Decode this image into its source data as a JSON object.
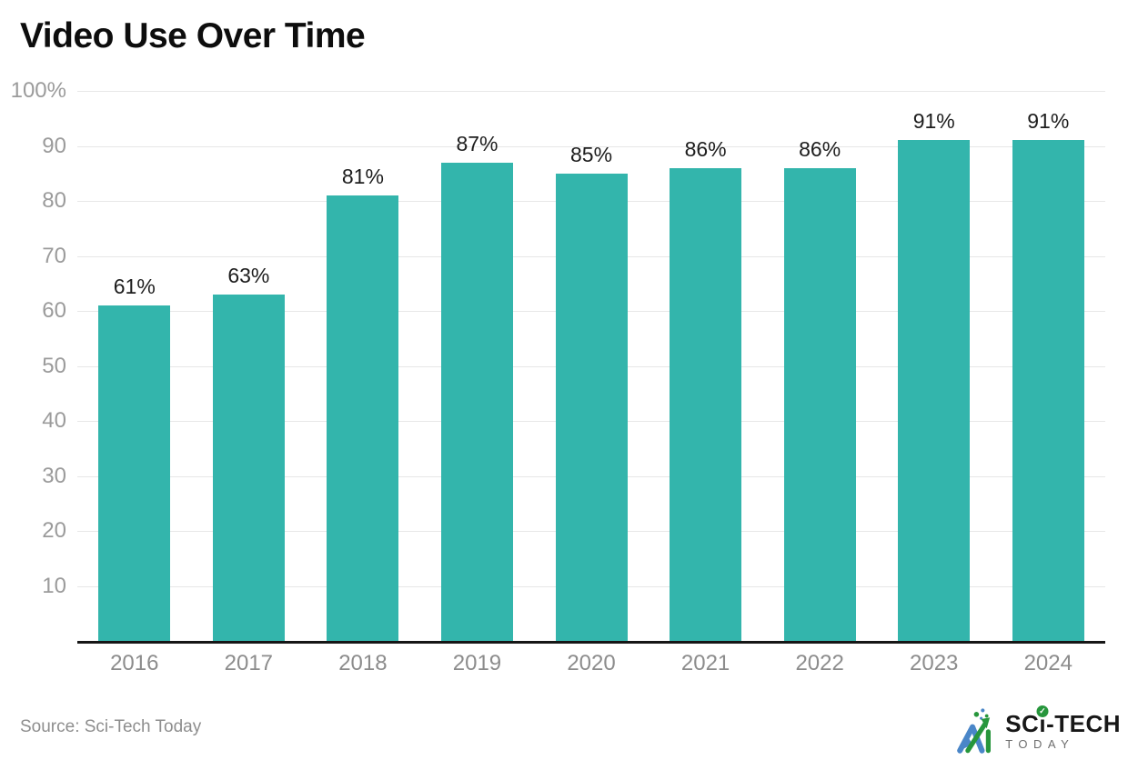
{
  "page": {
    "title": "Video Use Over Time",
    "source": "Source: Sci-Tech Today"
  },
  "logo": {
    "brand_prefix": "SC",
    "brand_i": "ı",
    "check": "✓",
    "brand_suffix": "-TECH",
    "brand_sub": "TODAY"
  },
  "colors": {
    "bar": "#33b5ac",
    "grid": "#e7e7e7",
    "baseline": "#161616",
    "tick_label": "#9b9b9b",
    "value_label": "#1d1d1d",
    "x_label": "#8c8c8c",
    "title": "#0d0d0d",
    "source": "#8e8e8e",
    "logo_green": "#27963c",
    "logo_blue": "#4a86c8"
  },
  "chart_data": {
    "type": "bar",
    "title": "Video Use Over Time",
    "categories": [
      "2016",
      "2017",
      "2018",
      "2019",
      "2020",
      "2021",
      "2022",
      "2023",
      "2024"
    ],
    "values": [
      61,
      63,
      81,
      87,
      85,
      86,
      86,
      91,
      91
    ],
    "value_labels": [
      "61%",
      "63%",
      "81%",
      "87%",
      "85%",
      "86%",
      "86%",
      "91%",
      "91%"
    ],
    "xlabel": "",
    "ylabel": "",
    "ylim": [
      0,
      100
    ],
    "yticks": [
      {
        "v": 100,
        "label": "100%"
      },
      {
        "v": 90,
        "label": "90"
      },
      {
        "v": 80,
        "label": "80"
      },
      {
        "v": 70,
        "label": "70"
      },
      {
        "v": 60,
        "label": "60"
      },
      {
        "v": 50,
        "label": "50"
      },
      {
        "v": 40,
        "label": "40"
      },
      {
        "v": 30,
        "label": "30"
      },
      {
        "v": 20,
        "label": "20"
      },
      {
        "v": 10,
        "label": "10"
      }
    ],
    "grid": "horizontal",
    "legend": "none",
    "source": "Source: Sci-Tech Today"
  }
}
